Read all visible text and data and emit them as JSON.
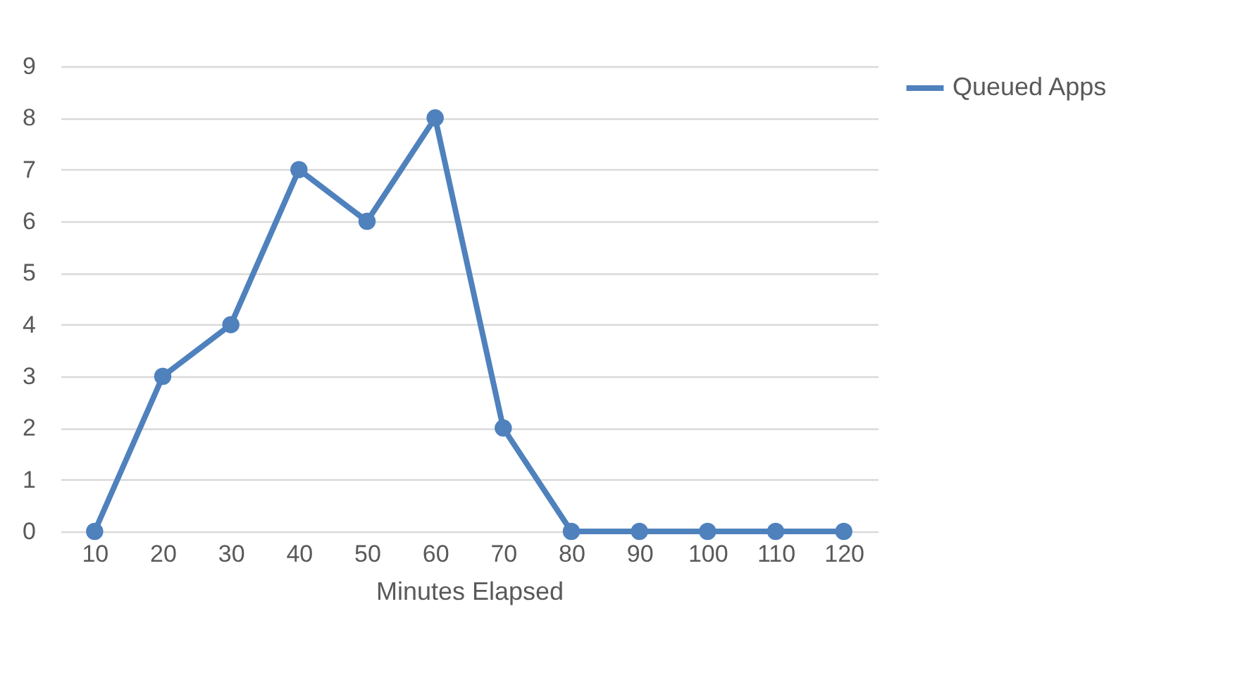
{
  "chart_data": {
    "type": "line",
    "xlabel": "Minutes Elapsed",
    "categories": [
      "10",
      "20",
      "30",
      "40",
      "50",
      "60",
      "70",
      "80",
      "90",
      "100",
      "110",
      "120"
    ],
    "series": [
      {
        "name": "Queued Apps",
        "color": "#4f81bd",
        "values": [
          0,
          3,
          4,
          7,
          6,
          8,
          2,
          0,
          0,
          0,
          0,
          0
        ]
      }
    ],
    "ylim": [
      0,
      9
    ],
    "yticks": [
      0,
      1,
      2,
      3,
      4,
      5,
      6,
      7,
      8,
      9
    ],
    "grid": "y",
    "legend": "right",
    "marker": "circle"
  }
}
